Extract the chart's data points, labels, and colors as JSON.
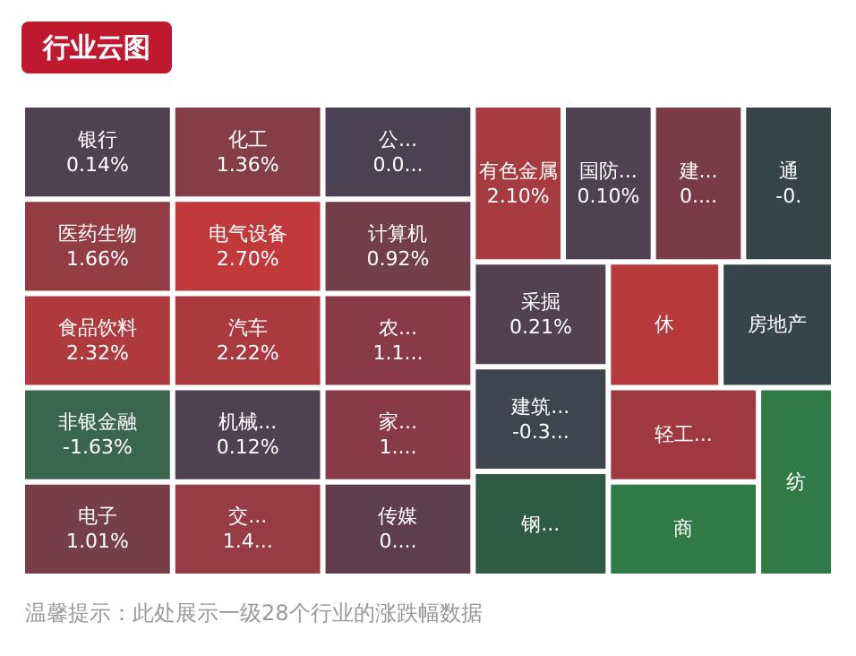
{
  "chart_data": {
    "type": "other",
    "title": "行业云图",
    "categories": [
      "银行",
      "医药生物",
      "食品饮料",
      "非银金融",
      "电子",
      "化工",
      "电气设备",
      "汽车",
      "机械...",
      "交...",
      "公...",
      "计算机",
      "农...",
      "家...",
      "传媒",
      "有色金属",
      "国防...",
      "建...",
      "通",
      "采掘",
      "建筑...",
      "钢...",
      "休",
      "房地产",
      "轻工...",
      "商",
      "纺"
    ],
    "values": [
      0.14,
      1.66,
      2.32,
      -1.63,
      1.01,
      1.36,
      2.7,
      2.22,
      0.12,
      null,
      null,
      0.92,
      null,
      null,
      null,
      2.1,
      0.1,
      null,
      null,
      0.21,
      null,
      null,
      null,
      null,
      null,
      null,
      null
    ],
    "value_labels": [
      "0.14%",
      "1.66%",
      "2.32%",
      "-1.63%",
      "1.01%",
      "1.36%",
      "2.70%",
      "2.22%",
      "0.12%",
      "1.4...",
      "0.0...",
      "0.92%",
      "1.1...",
      "1....",
      "0....",
      "2.10%",
      "0.10%",
      "0....",
      "-0.",
      "0.21%",
      "-0.3...",
      null,
      null,
      null,
      null,
      null,
      null
    ],
    "colors": [
      null,
      null,
      null,
      null,
      null,
      null,
      null,
      null,
      null,
      "#963c45",
      "#4a4152",
      null,
      "#883b46",
      "#883b46",
      "#5e3e4d",
      null,
      null,
      "#7a3b48",
      "#36454a",
      null,
      "#3c4550",
      "#2f5a45",
      "#b8393c",
      "#36444c",
      "#a0393f",
      "#2f7a45",
      "#2f7a45"
    ],
    "annotations": [
      "温馨提示：此处展示一级28个行业的涨跌幅数据"
    ]
  }
}
